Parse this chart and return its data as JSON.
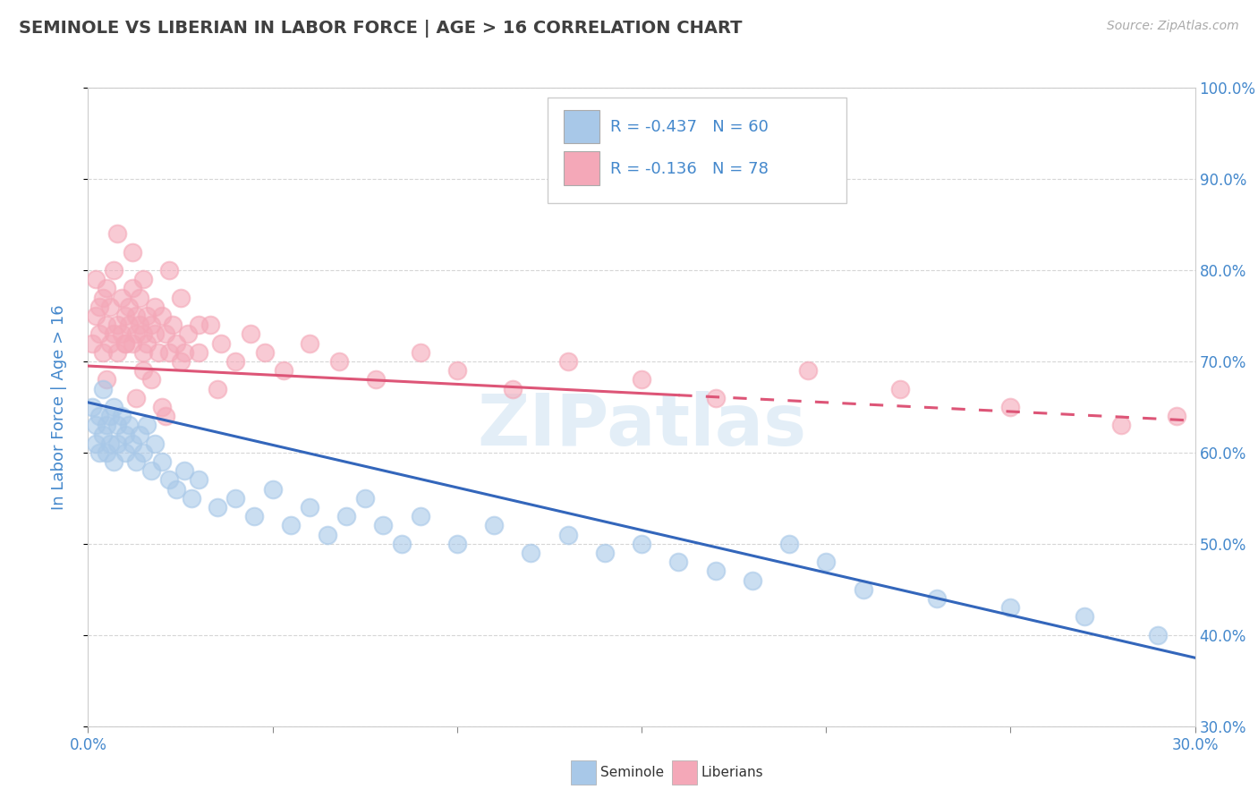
{
  "title": "SEMINOLE VS LIBERIAN IN LABOR FORCE | AGE > 16 CORRELATION CHART",
  "source_text": "Source: ZipAtlas.com",
  "ylabel": "In Labor Force | Age > 16",
  "xlim": [
    0.0,
    0.3
  ],
  "ylim": [
    0.3,
    1.0
  ],
  "xticks": [
    0.0,
    0.05,
    0.1,
    0.15,
    0.2,
    0.25,
    0.3
  ],
  "xticklabels": [
    "0.0%",
    "",
    "",
    "",
    "",
    "",
    "30.0%"
  ],
  "yticks": [
    0.3,
    0.4,
    0.5,
    0.6,
    0.7,
    0.8,
    0.9,
    1.0
  ],
  "yticklabels": [
    "30.0%",
    "40.0%",
    "50.0%",
    "60.0%",
    "70.0%",
    "80.0%",
    "90.0%",
    "100.0%"
  ],
  "seminole_color": "#a8c8e8",
  "liberian_color": "#f4a8b8",
  "seminole_R": -0.437,
  "seminole_N": 60,
  "liberian_R": -0.136,
  "liberian_N": 78,
  "trend_seminole_color": "#3366bb",
  "trend_liberian_color": "#dd5577",
  "grid_color": "#cccccc",
  "title_color": "#404040",
  "axis_label_color": "#4488cc",
  "watermark_text": "ZIPatlas",
  "seminole_x": [
    0.001,
    0.002,
    0.002,
    0.003,
    0.003,
    0.004,
    0.004,
    0.005,
    0.005,
    0.006,
    0.006,
    0.007,
    0.007,
    0.008,
    0.008,
    0.009,
    0.01,
    0.01,
    0.011,
    0.012,
    0.013,
    0.014,
    0.015,
    0.016,
    0.017,
    0.018,
    0.02,
    0.022,
    0.024,
    0.026,
    0.028,
    0.03,
    0.035,
    0.04,
    0.045,
    0.05,
    0.055,
    0.06,
    0.065,
    0.07,
    0.075,
    0.08,
    0.085,
    0.09,
    0.1,
    0.11,
    0.12,
    0.13,
    0.14,
    0.15,
    0.16,
    0.17,
    0.18,
    0.19,
    0.2,
    0.21,
    0.23,
    0.25,
    0.27,
    0.29
  ],
  "seminole_y": [
    0.65,
    0.63,
    0.61,
    0.64,
    0.6,
    0.62,
    0.67,
    0.63,
    0.6,
    0.64,
    0.61,
    0.65,
    0.59,
    0.63,
    0.61,
    0.64,
    0.62,
    0.6,
    0.63,
    0.61,
    0.59,
    0.62,
    0.6,
    0.63,
    0.58,
    0.61,
    0.59,
    0.57,
    0.56,
    0.58,
    0.55,
    0.57,
    0.54,
    0.55,
    0.53,
    0.56,
    0.52,
    0.54,
    0.51,
    0.53,
    0.55,
    0.52,
    0.5,
    0.53,
    0.5,
    0.52,
    0.49,
    0.51,
    0.49,
    0.5,
    0.48,
    0.47,
    0.46,
    0.5,
    0.48,
    0.45,
    0.44,
    0.43,
    0.42,
    0.4
  ],
  "liberian_x": [
    0.001,
    0.002,
    0.002,
    0.003,
    0.003,
    0.004,
    0.004,
    0.005,
    0.005,
    0.006,
    0.006,
    0.007,
    0.007,
    0.008,
    0.008,
    0.009,
    0.009,
    0.01,
    0.01,
    0.011,
    0.011,
    0.012,
    0.012,
    0.013,
    0.013,
    0.014,
    0.014,
    0.015,
    0.015,
    0.016,
    0.016,
    0.017,
    0.018,
    0.019,
    0.02,
    0.021,
    0.022,
    0.023,
    0.024,
    0.025,
    0.027,
    0.03,
    0.033,
    0.036,
    0.04,
    0.044,
    0.048,
    0.053,
    0.06,
    0.068,
    0.078,
    0.09,
    0.1,
    0.115,
    0.13,
    0.15,
    0.17,
    0.195,
    0.22,
    0.25,
    0.28,
    0.295,
    0.005,
    0.008,
    0.012,
    0.015,
    0.018,
    0.022,
    0.025,
    0.03,
    0.02,
    0.015,
    0.01,
    0.013,
    0.017,
    0.021,
    0.026,
    0.035
  ],
  "liberian_y": [
    0.72,
    0.75,
    0.79,
    0.73,
    0.76,
    0.77,
    0.71,
    0.74,
    0.78,
    0.72,
    0.76,
    0.73,
    0.8,
    0.74,
    0.71,
    0.77,
    0.73,
    0.75,
    0.72,
    0.76,
    0.74,
    0.72,
    0.78,
    0.73,
    0.75,
    0.74,
    0.77,
    0.71,
    0.73,
    0.75,
    0.72,
    0.74,
    0.73,
    0.71,
    0.75,
    0.73,
    0.71,
    0.74,
    0.72,
    0.7,
    0.73,
    0.71,
    0.74,
    0.72,
    0.7,
    0.73,
    0.71,
    0.69,
    0.72,
    0.7,
    0.68,
    0.71,
    0.69,
    0.67,
    0.7,
    0.68,
    0.66,
    0.69,
    0.67,
    0.65,
    0.63,
    0.64,
    0.68,
    0.84,
    0.82,
    0.79,
    0.76,
    0.8,
    0.77,
    0.74,
    0.65,
    0.69,
    0.72,
    0.66,
    0.68,
    0.64,
    0.71,
    0.67
  ],
  "sem_trend_x0": 0.0,
  "sem_trend_y0": 0.655,
  "sem_trend_x1": 0.3,
  "sem_trend_y1": 0.375,
  "lib_trend_x0": 0.0,
  "lib_trend_y0": 0.695,
  "lib_trend_x1": 0.3,
  "lib_trend_y1": 0.635,
  "lib_trend_solid_end": 0.16,
  "background_color": "#ffffff"
}
